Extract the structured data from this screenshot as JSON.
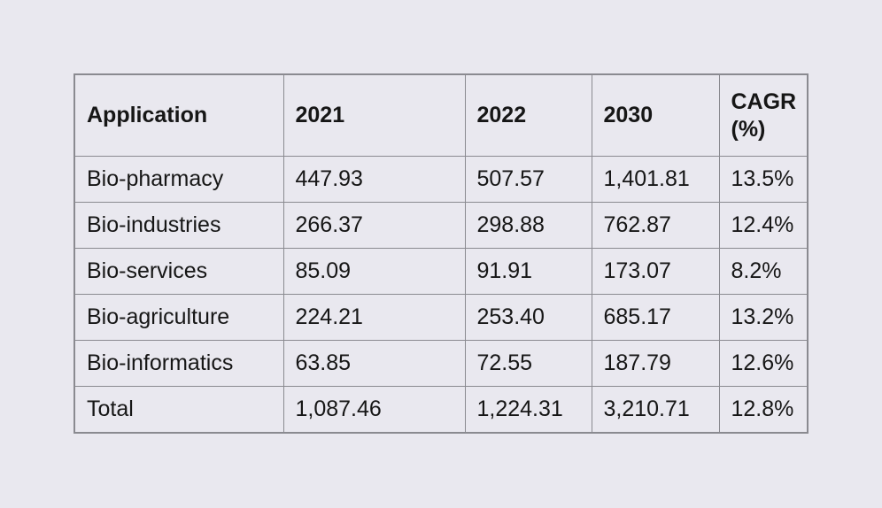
{
  "page": {
    "background_color": "#e9e8ef",
    "table_border_color": "#8a8a90",
    "text_color": "#161616"
  },
  "table": {
    "headers": [
      "Application",
      "2021",
      "2022",
      "2030",
      "CAGR (%)"
    ],
    "rows": [
      [
        "Bio-pharmacy",
        "447.93",
        "507.57",
        "1,401.81",
        "13.5%"
      ],
      [
        "Bio-industries",
        "266.37",
        "298.88",
        "762.87",
        "12.4%"
      ],
      [
        "Bio-services",
        "85.09",
        "91.91",
        "173.07",
        "8.2%"
      ],
      [
        "Bio-agriculture",
        "224.21",
        "253.40",
        "685.17",
        "13.2%"
      ],
      [
        "Bio-informatics",
        "63.85",
        "72.55",
        "187.79",
        "12.6%"
      ],
      [
        "Total",
        "1,087.46",
        "1,224.31",
        "3,210.71",
        "12.8%"
      ]
    ]
  },
  "chart_data": {
    "type": "table",
    "columns": [
      "Application",
      "2021",
      "2022",
      "2030",
      "CAGR (%)"
    ],
    "categories": [
      "Bio-pharmacy",
      "Bio-industries",
      "Bio-services",
      "Bio-agriculture",
      "Bio-informatics",
      "Total"
    ],
    "series": [
      {
        "name": "2021",
        "values": [
          447.93,
          266.37,
          85.09,
          224.21,
          63.85,
          1087.46
        ]
      },
      {
        "name": "2022",
        "values": [
          507.57,
          298.88,
          91.91,
          253.4,
          72.55,
          1224.31
        ]
      },
      {
        "name": "2030",
        "values": [
          1401.81,
          762.87,
          173.07,
          685.17,
          187.79,
          3210.71
        ]
      },
      {
        "name": "CAGR (%)",
        "values": [
          13.5,
          12.4,
          8.2,
          13.2,
          12.6,
          12.8
        ]
      }
    ],
    "title": "",
    "legend_position": "none",
    "grid": "full-borders"
  }
}
